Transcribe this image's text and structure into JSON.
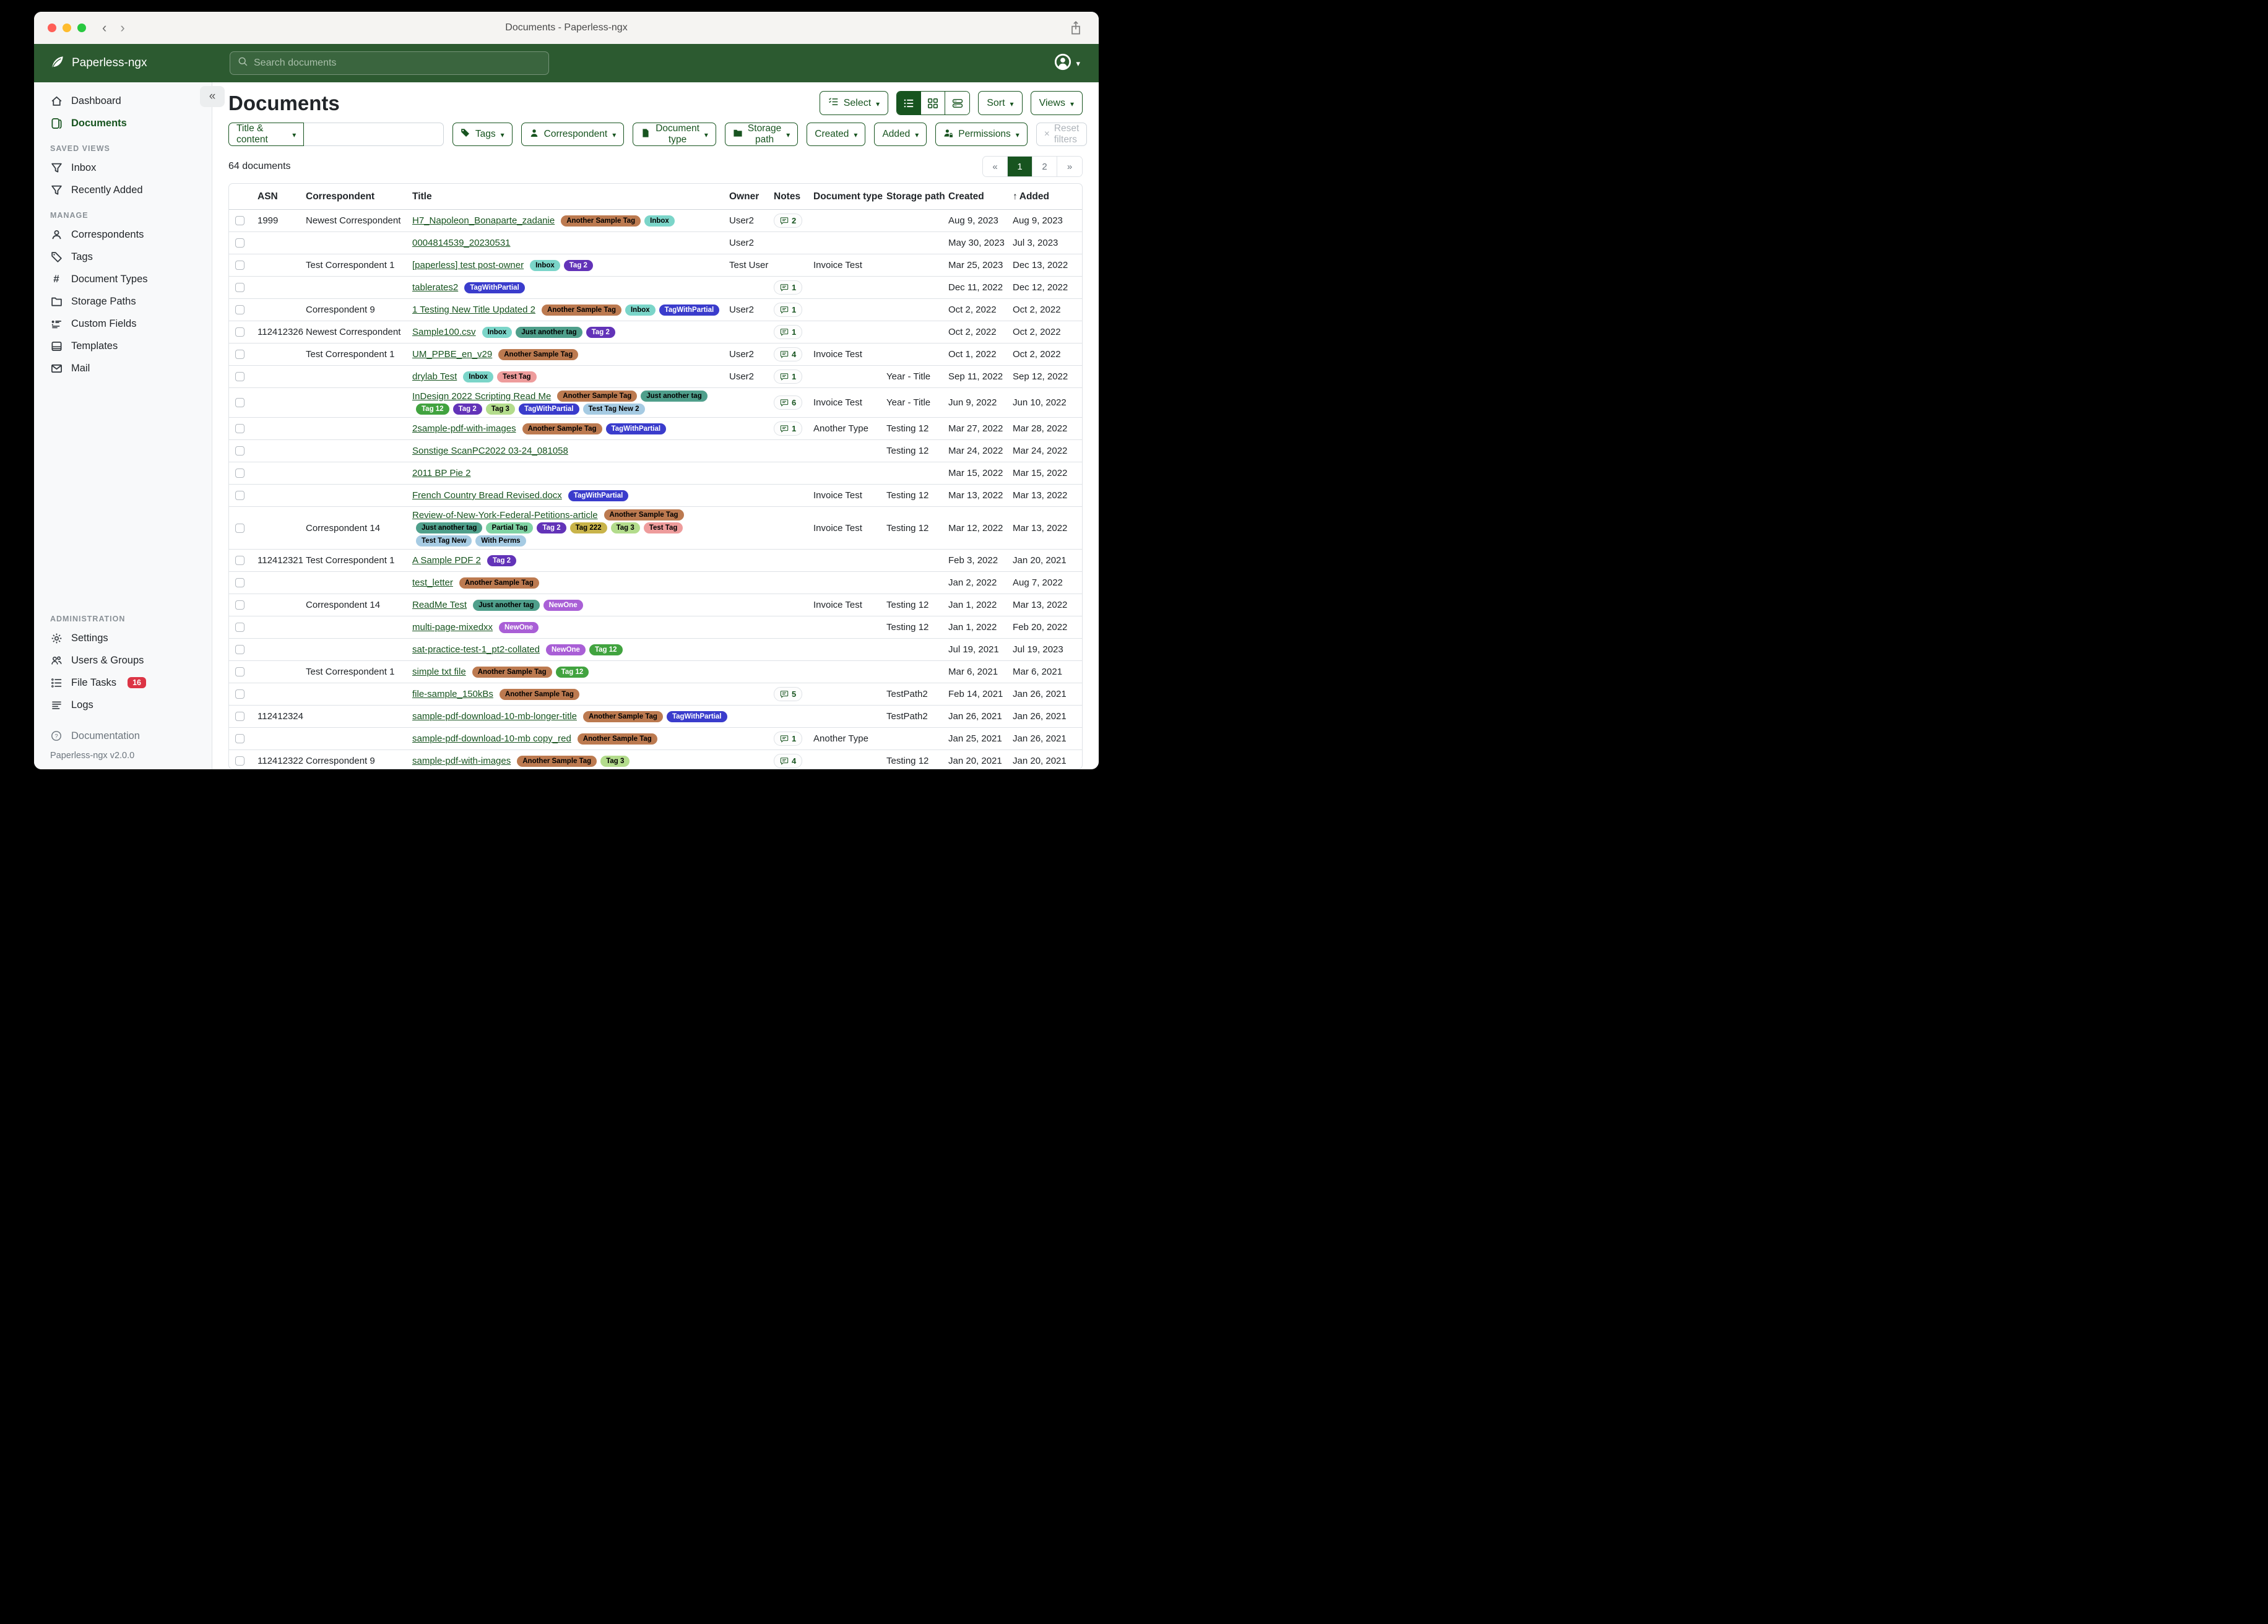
{
  "window": {
    "title": "Documents - Paperless-ngx"
  },
  "appbar": {
    "brand": "Paperless-ngx",
    "search_placeholder": "Search documents",
    "search_value": ""
  },
  "ui": {
    "collapse_glyph": "«"
  },
  "sidebar": {
    "dashboard": "Dashboard",
    "documents": "Documents",
    "saved_views_header": "SAVED VIEWS",
    "inbox": "Inbox",
    "recently_added": "Recently Added",
    "manage_header": "MANAGE",
    "correspondents": "Correspondents",
    "tags": "Tags",
    "document_types": "Document Types",
    "storage_paths": "Storage Paths",
    "custom_fields": "Custom Fields",
    "templates": "Templates",
    "mail": "Mail",
    "administration_header": "ADMINISTRATION",
    "settings": "Settings",
    "users_groups": "Users & Groups",
    "file_tasks": "File Tasks",
    "file_tasks_badge": "16",
    "logs": "Logs",
    "documentation": "Documentation",
    "version": "Paperless-ngx v2.0.0"
  },
  "toolbar": {
    "page_title": "Documents",
    "select_label": "Select",
    "sort_label": "Sort",
    "views_label": "Views"
  },
  "filters": {
    "title_content": "Title & content",
    "title_content_value": "",
    "tags": "Tags",
    "correspondent": "Correspondent",
    "document_type": "Document type",
    "storage_path": "Storage path",
    "created": "Created",
    "added": "Added",
    "permissions": "Permissions",
    "reset": "Reset filters"
  },
  "status": {
    "count_text": "64 documents"
  },
  "pagination": {
    "first": "«",
    "page1": "1",
    "page2": "2",
    "last": "»"
  },
  "tag_styles": {
    "Another Sample Tag": {
      "bg": "#bc7a50",
      "fg": "#000000"
    },
    "Inbox": {
      "bg": "#7bd5c9",
      "fg": "#000000"
    },
    "Tag 2": {
      "bg": "#6233b8",
      "fg": "#ffffff"
    },
    "TagWithPartial": {
      "bg": "#3a3ccc",
      "fg": "#ffffff"
    },
    "Just another tag": {
      "bg": "#4f9f8b",
      "fg": "#000000"
    },
    "Tag 12": {
      "bg": "#41a33f",
      "fg": "#ffffff"
    },
    "Tag 3": {
      "bg": "#b3dc8c",
      "fg": "#000000"
    },
    "Test Tag": {
      "bg": "#ee9c9c",
      "fg": "#000000"
    },
    "Test Tag New 2": {
      "bg": "#a6cbe3",
      "fg": "#000000"
    },
    "Partial Tag": {
      "bg": "#80d3a4",
      "fg": "#000000"
    },
    "Tag 222": {
      "bg": "#c9b44a",
      "fg": "#000000"
    },
    "Test Tag New": {
      "bg": "#a6cbe3",
      "fg": "#000000"
    },
    "With Perms": {
      "bg": "#a6cbe3",
      "fg": "#000000"
    },
    "NewOne": {
      "bg": "#a95fd6",
      "fg": "#ffffff"
    }
  },
  "table": {
    "headers": {
      "asn": "ASN",
      "correspondent": "Correspondent",
      "title": "Title",
      "owner": "Owner",
      "notes": "Notes",
      "doctype": "Document type",
      "storage": "Storage path",
      "created": "Created",
      "added": "Added",
      "sort_arrow": "↑"
    },
    "rows": [
      {
        "asn": "1999",
        "correspondent": "Newest Correspondent",
        "title": "H7_Napoleon_Bonaparte_zadanie",
        "tags": [
          "Another Sample Tag",
          "Inbox"
        ],
        "owner": "User2",
        "notes": 2,
        "doctype": "",
        "storage": "",
        "created": "Aug 9, 2023",
        "added": "Aug 9, 2023"
      },
      {
        "asn": "",
        "correspondent": "",
        "title": "0004814539_20230531",
        "tags": [],
        "owner": "User2",
        "notes": null,
        "doctype": "",
        "storage": "",
        "created": "May 30, 2023",
        "added": "Jul 3, 2023"
      },
      {
        "asn": "",
        "correspondent": "Test Correspondent 1",
        "title": "[paperless] test post-owner",
        "tags": [
          "Inbox",
          "Tag 2"
        ],
        "owner": "Test User",
        "notes": null,
        "doctype": "Invoice Test",
        "storage": "",
        "created": "Mar 25, 2023",
        "added": "Dec 13, 2022"
      },
      {
        "asn": "",
        "correspondent": "",
        "title": "tablerates2",
        "tags": [
          "TagWithPartial"
        ],
        "owner": "",
        "notes": 1,
        "doctype": "",
        "storage": "",
        "created": "Dec 11, 2022",
        "added": "Dec 12, 2022"
      },
      {
        "asn": "",
        "correspondent": "Correspondent 9",
        "title": "1 Testing New Title Updated 2",
        "tags": [
          "Another Sample Tag",
          "Inbox",
          "TagWithPartial"
        ],
        "owner": "User2",
        "notes": 1,
        "doctype": "",
        "storage": "",
        "created": "Oct 2, 2022",
        "added": "Oct 2, 2022"
      },
      {
        "asn": "112412326",
        "correspondent": "Newest Correspondent",
        "title": "Sample100.csv",
        "tags": [
          "Inbox",
          "Just another tag",
          "Tag 2"
        ],
        "owner": "",
        "notes": 1,
        "doctype": "",
        "storage": "",
        "created": "Oct 2, 2022",
        "added": "Oct 2, 2022"
      },
      {
        "asn": "",
        "correspondent": "Test Correspondent 1",
        "title": "UM_PPBE_en_v29",
        "tags": [
          "Another Sample Tag"
        ],
        "owner": "User2",
        "notes": 4,
        "doctype": "Invoice Test",
        "storage": "",
        "created": "Oct 1, 2022",
        "added": "Oct 2, 2022"
      },
      {
        "asn": "",
        "correspondent": "",
        "title": "drylab Test",
        "tags": [
          "Inbox",
          "Test Tag"
        ],
        "owner": "User2",
        "notes": 1,
        "doctype": "",
        "storage": "Year - Title",
        "created": "Sep 11, 2022",
        "added": "Sep 12, 2022"
      },
      {
        "asn": "",
        "correspondent": "",
        "title": "InDesign 2022 Scripting Read Me",
        "tags": [
          "Another Sample Tag",
          "Just another tag",
          "Tag 12",
          "Tag 2",
          "Tag 3",
          "TagWithPartial",
          "Test Tag New 2"
        ],
        "owner": "",
        "notes": 6,
        "doctype": "Invoice Test",
        "storage": "Year - Title",
        "created": "Jun 9, 2022",
        "added": "Jun 10, 2022"
      },
      {
        "asn": "",
        "correspondent": "",
        "title": "2sample-pdf-with-images",
        "tags": [
          "Another Sample Tag",
          "TagWithPartial"
        ],
        "owner": "",
        "notes": 1,
        "doctype": "Another Type",
        "storage": "Testing 12",
        "created": "Mar 27, 2022",
        "added": "Mar 28, 2022"
      },
      {
        "asn": "",
        "correspondent": "",
        "title": "Sonstige ScanPC2022 03-24_081058",
        "tags": [],
        "owner": "",
        "notes": null,
        "doctype": "",
        "storage": "Testing 12",
        "created": "Mar 24, 2022",
        "added": "Mar 24, 2022"
      },
      {
        "asn": "",
        "correspondent": "",
        "title": "2011 BP Pie 2",
        "tags": [],
        "owner": "",
        "notes": null,
        "doctype": "",
        "storage": "",
        "created": "Mar 15, 2022",
        "added": "Mar 15, 2022"
      },
      {
        "asn": "",
        "correspondent": "",
        "title": "French Country Bread Revised.docx",
        "tags": [
          "TagWithPartial"
        ],
        "owner": "",
        "notes": null,
        "doctype": "Invoice Test",
        "storage": "Testing 12",
        "created": "Mar 13, 2022",
        "added": "Mar 13, 2022"
      },
      {
        "asn": "",
        "correspondent": "Correspondent 14",
        "title": "Review-of-New-York-Federal-Petitions-article",
        "tags": [
          "Another Sample Tag",
          "Just another tag",
          "Partial Tag",
          "Tag 2",
          "Tag 222",
          "Tag 3",
          "Test Tag",
          "Test Tag New",
          "With Perms"
        ],
        "owner": "",
        "notes": null,
        "doctype": "Invoice Test",
        "storage": "Testing 12",
        "created": "Mar 12, 2022",
        "added": "Mar 13, 2022"
      },
      {
        "asn": "112412321",
        "correspondent": "Test Correspondent 1",
        "title": "A Sample PDF 2",
        "tags": [
          "Tag 2"
        ],
        "owner": "",
        "notes": null,
        "doctype": "",
        "storage": "",
        "created": "Feb 3, 2022",
        "added": "Jan 20, 2021"
      },
      {
        "asn": "",
        "correspondent": "",
        "title": "test_letter",
        "tags": [
          "Another Sample Tag"
        ],
        "owner": "",
        "notes": null,
        "doctype": "",
        "storage": "",
        "created": "Jan 2, 2022",
        "added": "Aug 7, 2022"
      },
      {
        "asn": "",
        "correspondent": "Correspondent 14",
        "title": "ReadMe Test",
        "tags": [
          "Just another tag",
          "NewOne"
        ],
        "owner": "",
        "notes": null,
        "doctype": "Invoice Test",
        "storage": "Testing 12",
        "created": "Jan 1, 2022",
        "added": "Mar 13, 2022"
      },
      {
        "asn": "",
        "correspondent": "",
        "title": "multi-page-mixedxx",
        "tags": [
          "NewOne"
        ],
        "owner": "",
        "notes": null,
        "doctype": "",
        "storage": "Testing 12",
        "created": "Jan 1, 2022",
        "added": "Feb 20, 2022"
      },
      {
        "asn": "",
        "correspondent": "",
        "title": "sat-practice-test-1_pt2-collated",
        "tags": [
          "NewOne",
          "Tag 12"
        ],
        "owner": "",
        "notes": null,
        "doctype": "",
        "storage": "",
        "created": "Jul 19, 2021",
        "added": "Jul 19, 2023"
      },
      {
        "asn": "",
        "correspondent": "Test Correspondent 1",
        "title": "simple txt file",
        "tags": [
          "Another Sample Tag",
          "Tag 12"
        ],
        "owner": "",
        "notes": null,
        "doctype": "",
        "storage": "",
        "created": "Mar 6, 2021",
        "added": "Mar 6, 2021"
      },
      {
        "asn": "",
        "correspondent": "",
        "title": "file-sample_150kBs",
        "tags": [
          "Another Sample Tag"
        ],
        "owner": "",
        "notes": 5,
        "doctype": "",
        "storage": "TestPath2",
        "created": "Feb 14, 2021",
        "added": "Jan 26, 2021"
      },
      {
        "asn": "112412324",
        "correspondent": "",
        "title": "sample-pdf-download-10-mb-longer-title",
        "tags": [
          "Another Sample Tag",
          "TagWithPartial"
        ],
        "owner": "",
        "notes": null,
        "doctype": "",
        "storage": "TestPath2",
        "created": "Jan 26, 2021",
        "added": "Jan 26, 2021"
      },
      {
        "asn": "",
        "correspondent": "",
        "title": "sample-pdf-download-10-mb copy_red",
        "tags": [
          "Another Sample Tag"
        ],
        "owner": "",
        "notes": 1,
        "doctype": "Another Type",
        "storage": "",
        "created": "Jan 25, 2021",
        "added": "Jan 26, 2021"
      },
      {
        "asn": "112412322",
        "correspondent": "Correspondent 9",
        "title": "sample-pdf-with-images",
        "tags": [
          "Another Sample Tag",
          "Tag 3"
        ],
        "owner": "",
        "notes": 4,
        "doctype": "",
        "storage": "Testing 12",
        "created": "Jan 20, 2021",
        "added": "Jan 20, 2021"
      }
    ]
  }
}
